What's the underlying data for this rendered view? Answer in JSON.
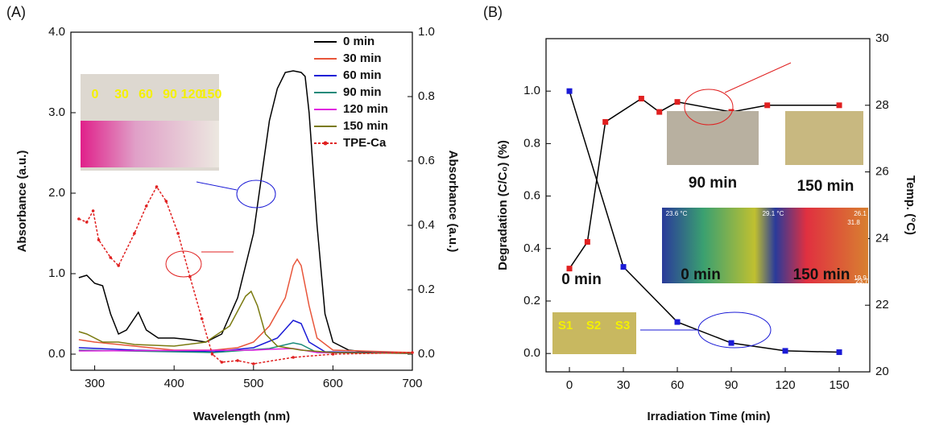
{
  "chart_data": [
    {
      "type": "line",
      "title": "(A)",
      "x_label": "Wavelength (nm)",
      "y_label": "Absorbance (a.u.)",
      "y2_label": "Absorbance (a.u.)",
      "xlim": [
        270,
        700
      ],
      "xticks": [
        300,
        400,
        500,
        600,
        700
      ],
      "ylim": [
        -0.2,
        4.0
      ],
      "yticks": [
        {
          "value": 0,
          "label": "0.0"
        },
        {
          "value": 1,
          "label": "1.0"
        },
        {
          "value": 2,
          "label": "2.0"
        },
        {
          "value": 3,
          "label": "3.0"
        },
        {
          "value": 4,
          "label": "4.0"
        }
      ],
      "y2lim": [
        -0.05,
        1.0
      ],
      "y2ticks": [
        {
          "value": 0,
          "label": "0.0"
        },
        0.2,
        0.4,
        0.6,
        0.8,
        {
          "value": 1,
          "label": "1.0"
        }
      ],
      "legend": "upper right",
      "inset_labels": [
        "0",
        "30",
        "60",
        "90",
        "120",
        "150"
      ],
      "series": [
        {
          "name": "0 min",
          "color": "#000000",
          "x": [
            280,
            290,
            300,
            310,
            320,
            330,
            340,
            355,
            365,
            380,
            400,
            420,
            440,
            460,
            480,
            500,
            510,
            520,
            530,
            540,
            550,
            560,
            565,
            570,
            580,
            590,
            600,
            620,
            650,
            700
          ],
          "values": [
            0.95,
            0.98,
            0.88,
            0.85,
            0.5,
            0.25,
            0.3,
            0.52,
            0.3,
            0.2,
            0.2,
            0.18,
            0.15,
            0.25,
            0.7,
            1.5,
            2.2,
            2.9,
            3.3,
            3.5,
            3.52,
            3.5,
            3.45,
            3.0,
            1.6,
            0.5,
            0.15,
            0.05,
            0.02,
            0.02
          ]
        },
        {
          "name": "30 min",
          "color": "#e8553a",
          "x": [
            280,
            300,
            330,
            400,
            450,
            480,
            500,
            520,
            540,
            550,
            555,
            560,
            570,
            580,
            600,
            700
          ],
          "values": [
            0.18,
            0.15,
            0.12,
            0.05,
            0.05,
            0.08,
            0.15,
            0.35,
            0.7,
            1.1,
            1.18,
            1.1,
            0.6,
            0.2,
            0.05,
            0.02
          ]
        },
        {
          "name": "60 min",
          "color": "#1a1ad6",
          "x": [
            280,
            350,
            450,
            500,
            530,
            550,
            560,
            570,
            590,
            700
          ],
          "values": [
            0.08,
            0.05,
            0.03,
            0.08,
            0.2,
            0.42,
            0.38,
            0.15,
            0.03,
            0.01
          ]
        },
        {
          "name": "90 min",
          "color": "#1a8a7a",
          "x": [
            280,
            450,
            520,
            550,
            560,
            580,
            700
          ],
          "values": [
            0.05,
            0.02,
            0.07,
            0.14,
            0.12,
            0.02,
            0.01
          ]
        },
        {
          "name": "120 min",
          "color": "#e020e0",
          "x": [
            280,
            500,
            520,
            550,
            580,
            700
          ],
          "values": [
            0.04,
            0.05,
            0.06,
            0.07,
            0.02,
            0.01
          ]
        },
        {
          "name": "150 min",
          "color": "#7a7a10",
          "x": [
            280,
            290,
            310,
            330,
            350,
            400,
            440,
            470,
            490,
            497,
            505,
            515,
            530,
            560,
            600,
            700
          ],
          "values": [
            0.28,
            0.25,
            0.15,
            0.15,
            0.12,
            0.1,
            0.15,
            0.35,
            0.72,
            0.78,
            0.6,
            0.25,
            0.1,
            0.05,
            0.02,
            0.01
          ]
        },
        {
          "name": "TPE-Ca",
          "color": "#e02020",
          "axis": "y2",
          "marker": "dot",
          "dash": true,
          "x": [
            280,
            290,
            298,
            305,
            320,
            330,
            350,
            365,
            378,
            390,
            405,
            420,
            435,
            448,
            460,
            480,
            500,
            550,
            600,
            700
          ],
          "values": [
            0.42,
            0.41,
            0.445,
            0.355,
            0.3,
            0.275,
            0.375,
            0.46,
            0.52,
            0.475,
            0.375,
            0.24,
            0.11,
            0,
            -0.025,
            -0.02,
            -0.03,
            -0.01,
            0,
            0.005
          ]
        }
      ]
    },
    {
      "type": "line",
      "title": "(B)",
      "x_label": "Irradiation Time (min)",
      "y_label": "Degradation (C/C₀) (%)",
      "y2_label": "Temp. (°C)",
      "xlim": [
        -13,
        167
      ],
      "xticks": [
        0,
        30,
        60,
        90,
        120,
        150
      ],
      "ylim": [
        -0.07,
        1.2
      ],
      "yticks": [
        {
          "value": 0,
          "label": "0.0"
        },
        0.2,
        0.4,
        0.6,
        0.8,
        {
          "value": 1,
          "label": "1.0"
        }
      ],
      "y2lim": [
        20,
        30
      ],
      "y2ticks": [
        20,
        22,
        24,
        26,
        28,
        30
      ],
      "annotations": [
        "90 min",
        "150 min",
        "0 min",
        "150 min",
        "0 min"
      ],
      "thermal_labels": [
        "23.6 °C",
        "26.1",
        "29.1 °C",
        "31.8",
        "19.9",
        "23.7"
      ],
      "photo_labels": [
        "S1",
        "S2",
        "S3"
      ],
      "series": [
        {
          "color": "#1a1ad6",
          "marker": "square",
          "x": [
            0,
            30,
            60,
            90,
            120,
            150
          ],
          "values": [
            1.0,
            0.33,
            0.12,
            0.04,
            0.01,
            0.005
          ]
        },
        {
          "color": "#e02020",
          "marker": "square",
          "axis": "y2",
          "x": [
            0,
            10,
            20,
            40,
            50,
            60,
            90,
            110,
            150
          ],
          "values": [
            23.1,
            23.9,
            27.5,
            28.2,
            27.8,
            28.1,
            27.8,
            28.0,
            28.0
          ]
        }
      ]
    }
  ]
}
